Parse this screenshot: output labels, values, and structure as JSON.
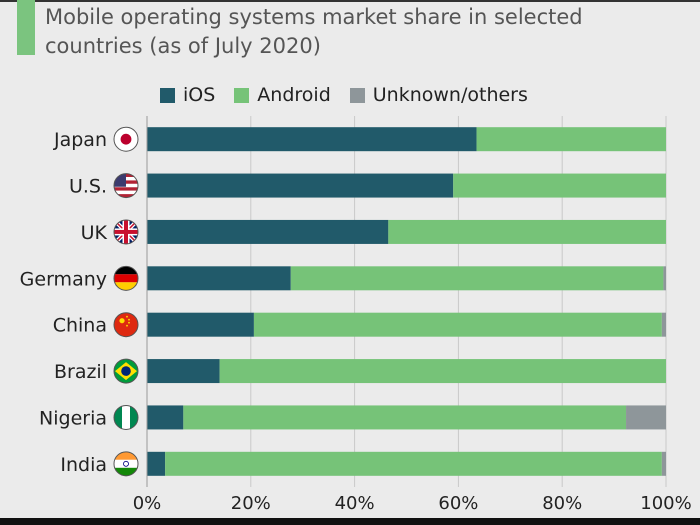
{
  "title": "Mobile operating systems market share in selected countries (as of July 2020)",
  "colors": {
    "accent": "#7bc47f",
    "ios": "#215a6a",
    "android": "#76c378",
    "other": "#8e969a",
    "grid": "#c9c9c9",
    "background": "#ebebeb"
  },
  "legend": [
    {
      "label": "iOS",
      "color_key": "ios"
    },
    {
      "label": "Android",
      "color_key": "android"
    },
    {
      "label": "Unknown/others",
      "color_key": "other"
    }
  ],
  "chart_data": {
    "type": "bar",
    "orientation": "horizontal",
    "stacked": true,
    "title": "Mobile operating systems market share in selected countries (as of July 2020)",
    "categories": [
      "Japan",
      "U.S.",
      "UK",
      "Germany",
      "China",
      "Brazil",
      "Nigeria",
      "India"
    ],
    "flag_icons": [
      "japan-flag-icon",
      "us-flag-icon",
      "uk-flag-icon",
      "germany-flag-icon",
      "china-flag-icon",
      "brazil-flag-icon",
      "nigeria-flag-icon",
      "india-flag-icon"
    ],
    "series": [
      {
        "name": "iOS",
        "values": [
          63.5,
          59,
          46.5,
          27.7,
          20.6,
          14,
          7,
          3.5
        ]
      },
      {
        "name": "Android",
        "values": [
          36.5,
          41,
          53.5,
          71.8,
          78.6,
          86,
          85.3,
          95.7
        ]
      },
      {
        "name": "Unknown/others",
        "values": [
          0,
          0,
          0,
          0.5,
          0.8,
          0,
          7.7,
          0.8
        ]
      }
    ],
    "xlim": [
      0,
      100
    ],
    "xticks": [
      "0%",
      "20%",
      "40%",
      "60%",
      "80%",
      "100%"
    ],
    "grid": true,
    "legend_position": "top"
  }
}
